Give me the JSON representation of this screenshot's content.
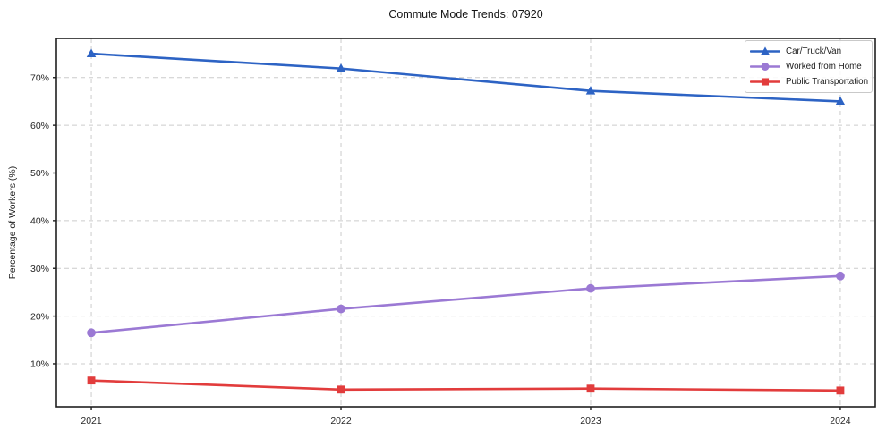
{
  "colors": {
    "background": "#ffffff",
    "grid": "#cccccc",
    "axis": "#1f1f1f",
    "tick_text": "#262626",
    "legend_border": "#c9c9c9",
    "legend_bg": "#ffffff"
  },
  "chart_data": {
    "type": "line",
    "title": "Commute Mode Trends: 07920",
    "xlabel": "",
    "ylabel": "Percentage of Workers (%)",
    "x": [
      2021,
      2022,
      2023,
      2024
    ],
    "x_tick_labels": [
      "2021",
      "2022",
      "2023",
      "2024"
    ],
    "y_ticks": [
      10,
      20,
      30,
      40,
      50,
      60,
      70
    ],
    "y_tick_labels": [
      "10%",
      "20%",
      "30%",
      "40%",
      "50%",
      "60%",
      "70%"
    ],
    "xlim": [
      2020.86,
      2024.14
    ],
    "ylim": [
      1,
      78.2
    ],
    "grid": true,
    "grid_style": "dashed",
    "legend_position": "upper right",
    "series": [
      {
        "name": "Car/Truck/Van",
        "color": "#2d63c4",
        "marker": "triangle",
        "values": [
          75.0,
          71.9,
          67.2,
          65.0
        ]
      },
      {
        "name": "Worked from Home",
        "color": "#9b79d4",
        "marker": "circle",
        "values": [
          16.5,
          21.5,
          25.8,
          28.4
        ]
      },
      {
        "name": "Public Transportation",
        "color": "#e23c3c",
        "marker": "square",
        "values": [
          6.5,
          4.6,
          4.8,
          4.4
        ]
      }
    ]
  }
}
